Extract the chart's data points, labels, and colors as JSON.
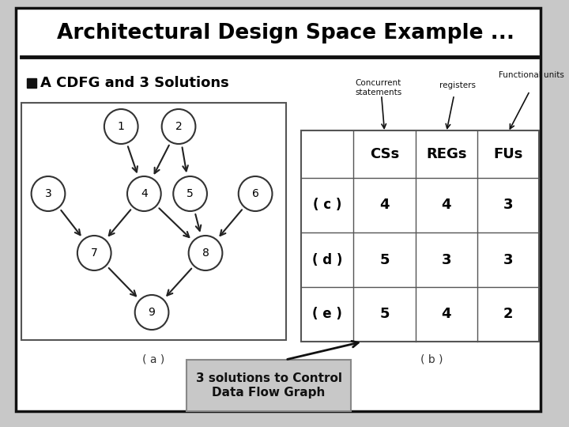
{
  "title": "Architectural Design Space Example ...",
  "bullet_text": "A CDFG and 3 Solutions",
  "graph_edges": [
    [
      "1",
      "4"
    ],
    [
      "2",
      "4"
    ],
    [
      "2",
      "5"
    ],
    [
      "3",
      "7"
    ],
    [
      "4",
      "7"
    ],
    [
      "4",
      "8"
    ],
    [
      "5",
      "8"
    ],
    [
      "6",
      "8"
    ],
    [
      "7",
      "9"
    ],
    [
      "8",
      "9"
    ]
  ],
  "table_headers": [
    "CSs",
    "REGs",
    "FUs"
  ],
  "table_rows": [
    [
      "( c )",
      "4",
      "4",
      "3"
    ],
    [
      "( d )",
      "5",
      "3",
      "3"
    ],
    [
      "( e )",
      "5",
      "4",
      "2"
    ]
  ],
  "label_a": "( a )",
  "label_b": "( b )",
  "annotation_concurrent": "Concurrent\nstatements",
  "annotation_registers": "registers",
  "annotation_functional": "Functional units",
  "callout_text": "3 solutions to Control\nData Flow Graph",
  "bg_color": "#c8c8c8",
  "slide_bg": "#ffffff",
  "border_color": "#111111",
  "node_color": "#ffffff",
  "node_edge_color": "#333333",
  "title_color": "#000000",
  "callout_bg": "#c8c8c8"
}
